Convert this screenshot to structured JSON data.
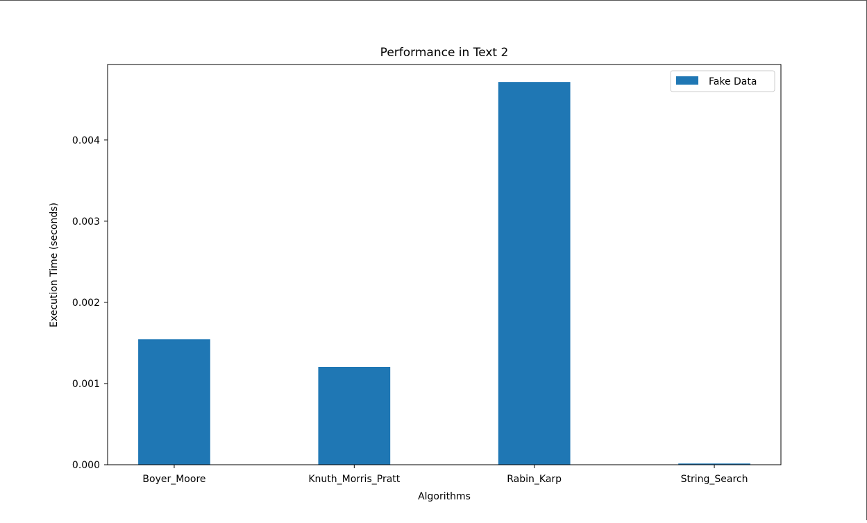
{
  "chart_data": {
    "type": "bar",
    "title": "Performance in Text 2",
    "xlabel": "Algorithms",
    "ylabel": "Execution Time (seconds)",
    "categories": [
      "Boyer_Moore",
      "Knuth_Morris_Pratt",
      "Rabin_Karp",
      "String_Search"
    ],
    "series": [
      {
        "name": "Fake Data",
        "color": "#1f77b4",
        "values": [
          0.001545,
          0.001205,
          0.004715,
          1.5e-05
        ]
      }
    ],
    "ylim": [
      0,
      0.00493
    ],
    "yticks": [
      0.0,
      0.001,
      0.002,
      0.003,
      0.004
    ],
    "ytick_labels": [
      "0.000",
      "0.001",
      "0.002",
      "0.003",
      "0.004"
    ],
    "grid": false,
    "legend_position": "upper-right"
  }
}
